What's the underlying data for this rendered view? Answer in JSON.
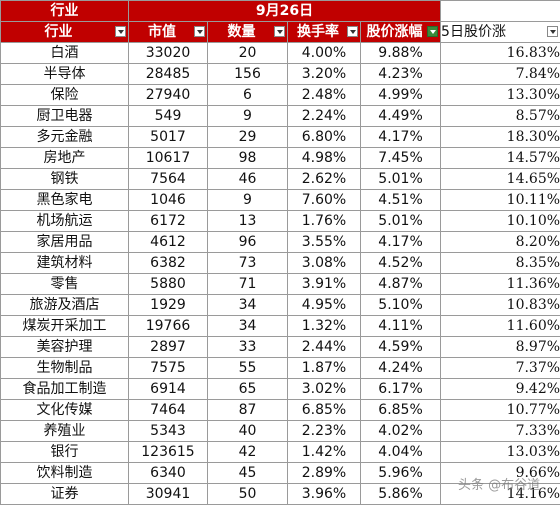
{
  "header": {
    "sector": "行业",
    "date": "9月26日",
    "columns": [
      "行业",
      "市值",
      "数量",
      "换手率",
      "股价涨幅",
      "5日股价涨"
    ]
  },
  "rows": [
    {
      "name": "白酒",
      "mv": "33020",
      "count": "20",
      "turnover": "4.00%",
      "chg": "9.88%",
      "chg5": "16.83%"
    },
    {
      "name": "半导体",
      "mv": "28485",
      "count": "156",
      "turnover": "3.20%",
      "chg": "4.23%",
      "chg5": "7.84%"
    },
    {
      "name": "保险",
      "mv": "27940",
      "count": "6",
      "turnover": "2.48%",
      "chg": "4.99%",
      "chg5": "13.30%"
    },
    {
      "name": "厨卫电器",
      "mv": "549",
      "count": "9",
      "turnover": "2.24%",
      "chg": "4.49%",
      "chg5": "8.57%"
    },
    {
      "name": "多元金融",
      "mv": "5017",
      "count": "29",
      "turnover": "6.80%",
      "chg": "4.17%",
      "chg5": "18.30%"
    },
    {
      "name": "房地产",
      "mv": "10617",
      "count": "98",
      "turnover": "4.98%",
      "chg": "7.45%",
      "chg5": "14.57%"
    },
    {
      "name": "钢铁",
      "mv": "7564",
      "count": "46",
      "turnover": "2.62%",
      "chg": "5.01%",
      "chg5": "14.65%"
    },
    {
      "name": "黑色家电",
      "mv": "1046",
      "count": "9",
      "turnover": "7.60%",
      "chg": "4.51%",
      "chg5": "10.11%"
    },
    {
      "name": "机场航运",
      "mv": "6172",
      "count": "13",
      "turnover": "1.76%",
      "chg": "5.01%",
      "chg5": "10.10%"
    },
    {
      "name": "家居用品",
      "mv": "4612",
      "count": "96",
      "turnover": "3.55%",
      "chg": "4.17%",
      "chg5": "8.20%"
    },
    {
      "name": "建筑材料",
      "mv": "6382",
      "count": "73",
      "turnover": "3.08%",
      "chg": "4.52%",
      "chg5": "8.35%"
    },
    {
      "name": "零售",
      "mv": "5880",
      "count": "71",
      "turnover": "3.91%",
      "chg": "4.87%",
      "chg5": "11.36%"
    },
    {
      "name": "旅游及酒店",
      "mv": "1929",
      "count": "34",
      "turnover": "4.95%",
      "chg": "5.10%",
      "chg5": "10.83%"
    },
    {
      "name": "煤炭开采加工",
      "mv": "19766",
      "count": "34",
      "turnover": "1.32%",
      "chg": "4.11%",
      "chg5": "11.60%"
    },
    {
      "name": "美容护理",
      "mv": "2897",
      "count": "33",
      "turnover": "2.44%",
      "chg": "4.59%",
      "chg5": "8.97%"
    },
    {
      "name": "生物制品",
      "mv": "7575",
      "count": "55",
      "turnover": "1.87%",
      "chg": "4.24%",
      "chg5": "7.37%"
    },
    {
      "name": "食品加工制造",
      "mv": "6914",
      "count": "65",
      "turnover": "3.02%",
      "chg": "6.17%",
      "chg5": "9.42%"
    },
    {
      "name": "文化传媒",
      "mv": "7464",
      "count": "87",
      "turnover": "6.85%",
      "chg": "6.85%",
      "chg5": "10.77%"
    },
    {
      "name": "养殖业",
      "mv": "5343",
      "count": "40",
      "turnover": "2.23%",
      "chg": "4.02%",
      "chg5": "7.33%"
    },
    {
      "name": "银行",
      "mv": "123615",
      "count": "42",
      "turnover": "1.42%",
      "chg": "4.04%",
      "chg5": "13.03%"
    },
    {
      "name": "饮料制造",
      "mv": "6340",
      "count": "45",
      "turnover": "2.89%",
      "chg": "5.96%",
      "chg5": "9.66%"
    },
    {
      "name": "证券",
      "mv": "30941",
      "count": "50",
      "turnover": "3.96%",
      "chg": "5.86%",
      "chg5": "14.16%"
    }
  ],
  "watermark": "头条 @布谷道"
}
